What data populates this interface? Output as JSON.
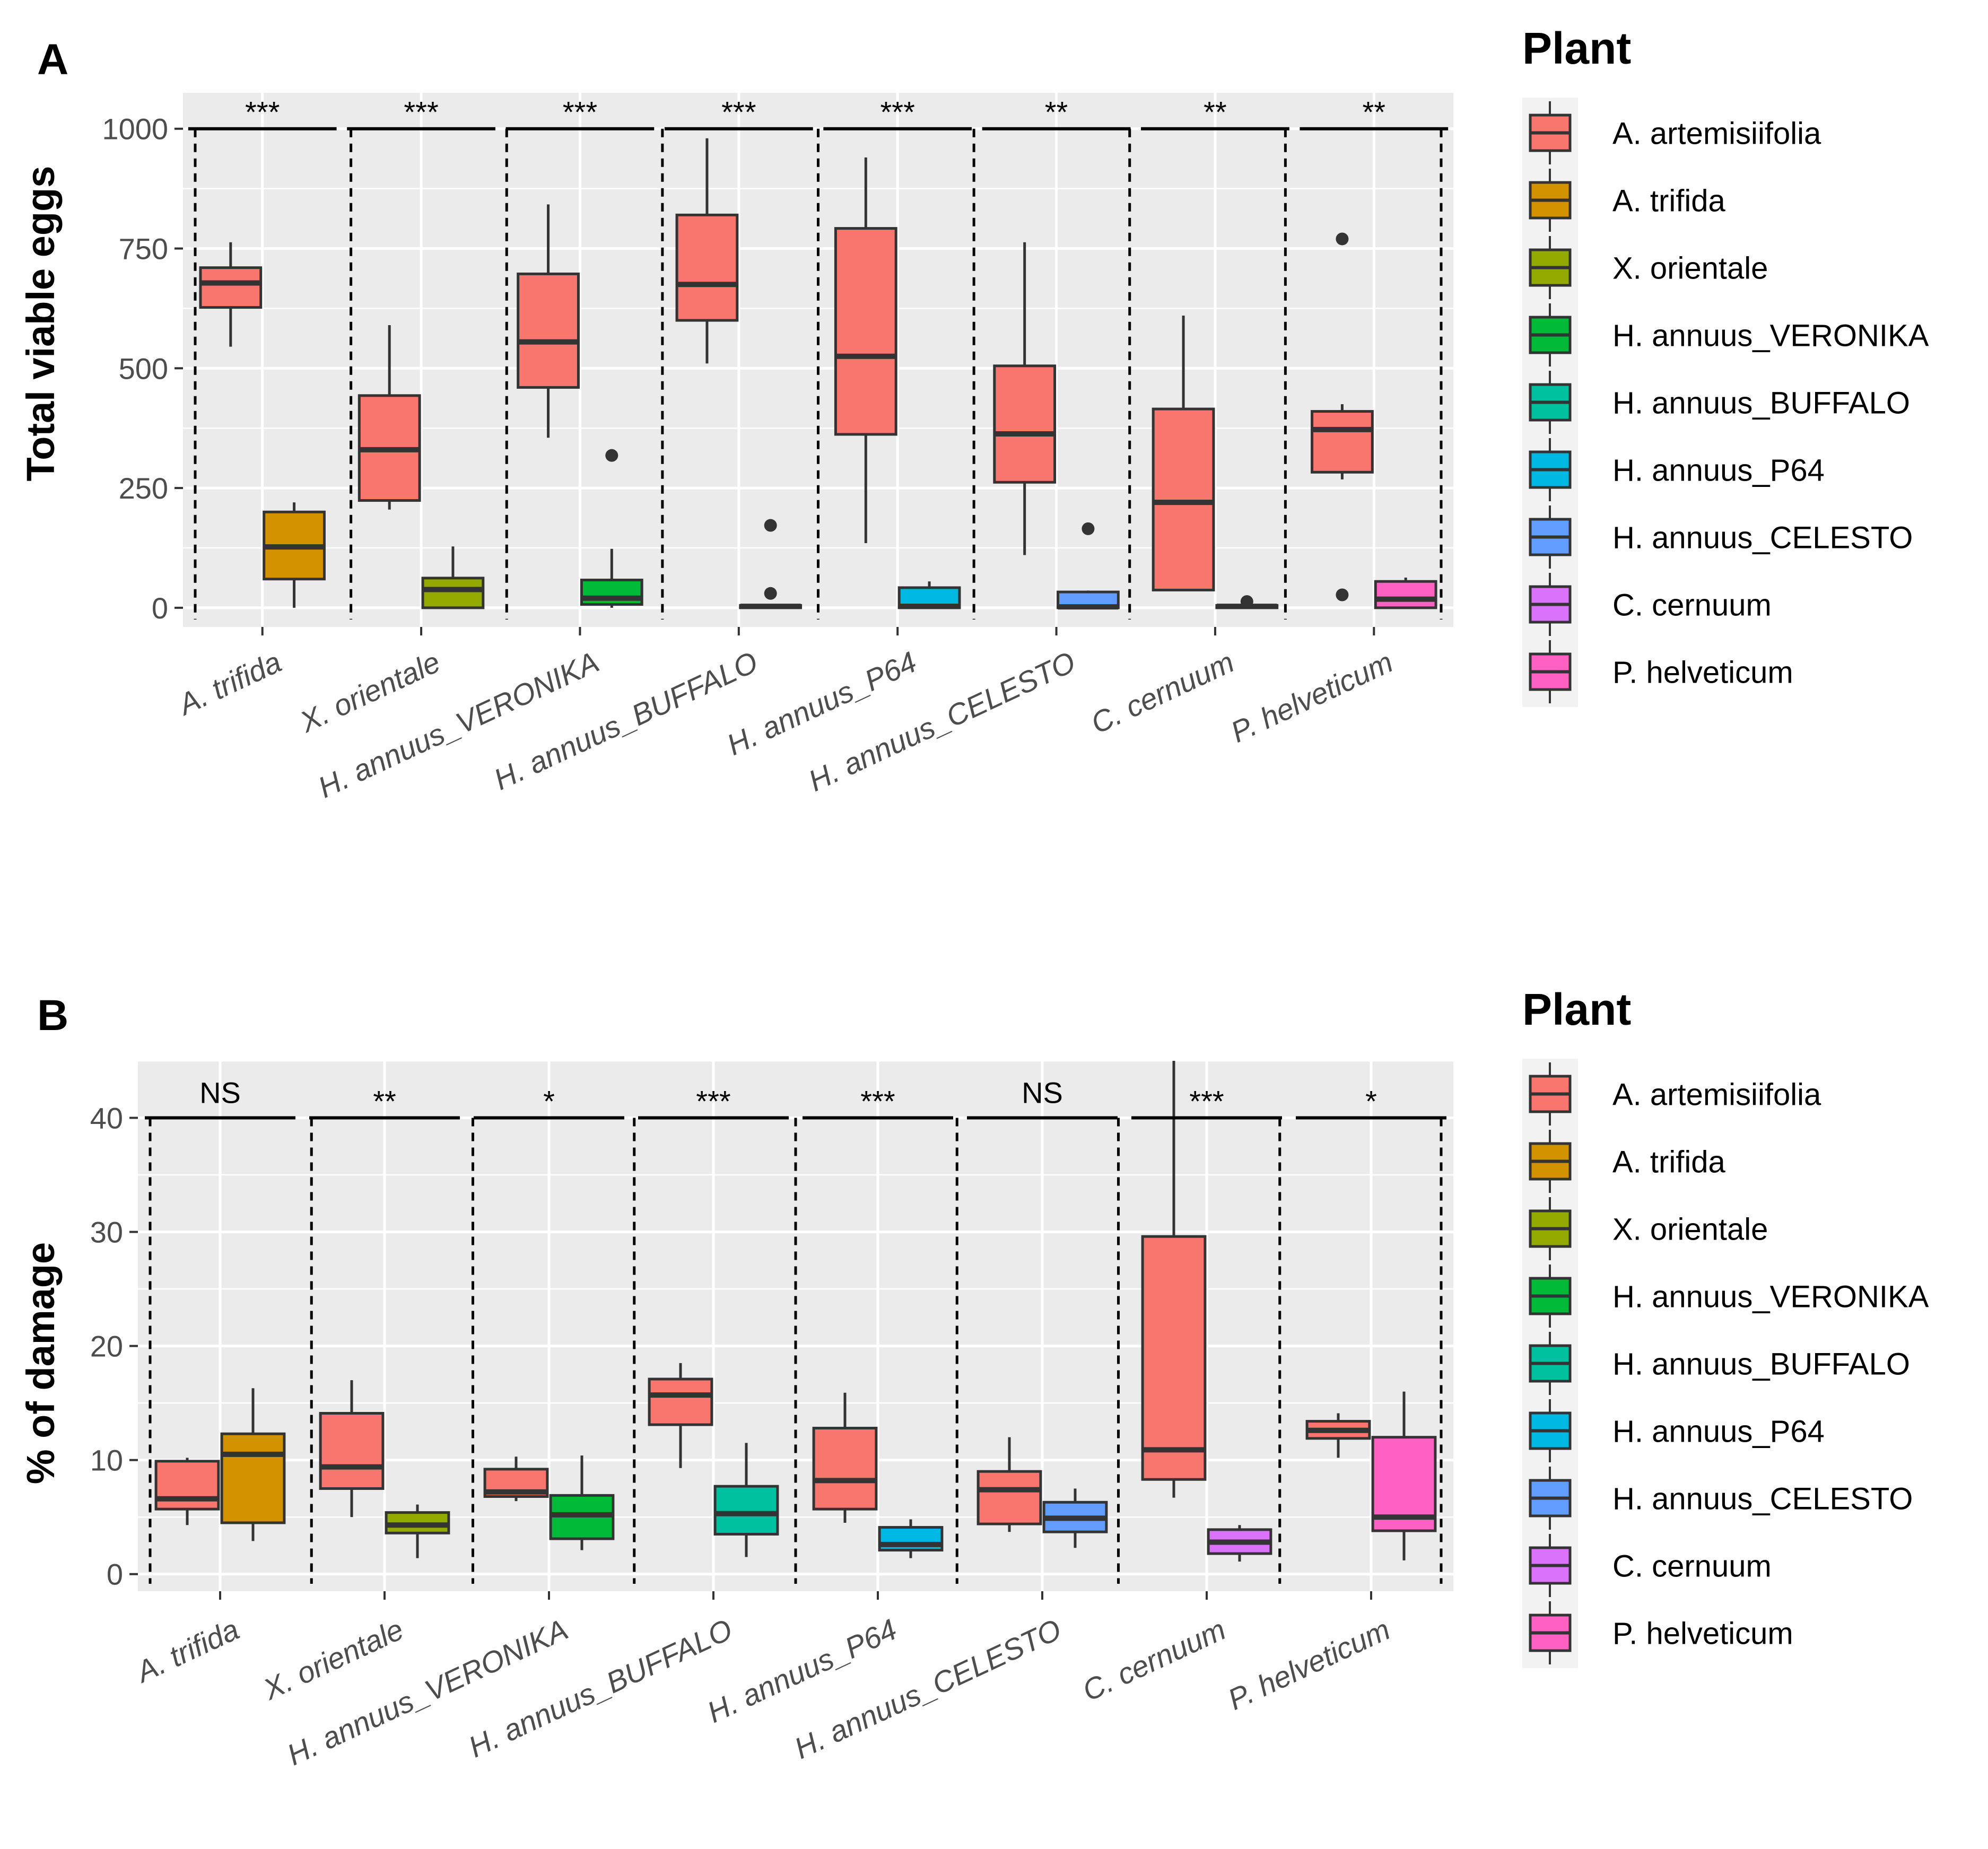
{
  "legend": {
    "title": "Plant",
    "items": [
      {
        "label": "A. artemisiifolia",
        "color": "#F8766D"
      },
      {
        "label": "A. trifida",
        "color": "#D39200"
      },
      {
        "label": "X. orientale",
        "color": "#93AA00"
      },
      {
        "label": "H. annuus_VERONIKA",
        "color": "#00BA38"
      },
      {
        "label": "H. annuus_BUFFALO",
        "color": "#00C19F"
      },
      {
        "label": "H. annuus_P64",
        "color": "#00B9E3"
      },
      {
        "label": "H. annuus_CELESTO",
        "color": "#619CFF"
      },
      {
        "label": "C. cernuum",
        "color": "#DB72FB"
      },
      {
        "label": "P. helveticum",
        "color": "#FF61C3"
      }
    ]
  },
  "chart_data": [
    {
      "type": "boxplot",
      "panel_label": "A",
      "ylabel": "Total viable eggs",
      "xlabel": "",
      "ylim": [
        -40,
        1075
      ],
      "yticks": [
        0,
        250,
        500,
        750,
        1000
      ],
      "ytick_labels": [
        "0",
        "250",
        "500",
        "750",
        "1000"
      ],
      "sig_level": 1000,
      "categories": [
        "A. trifida",
        "X. orientale",
        "H. annuus_VERONIKA",
        "H. annuus_BUFFALO",
        "H. annuus_P64",
        "H. annuus_CELESTO",
        "C. cernuum",
        "P. helveticum"
      ],
      "significance": [
        "***",
        "***",
        "***",
        "***",
        "***",
        "**",
        "**",
        "**"
      ],
      "reference": [
        {
          "min": 545,
          "q1": 627,
          "median": 678,
          "q3": 710,
          "max": 763,
          "outliers": []
        },
        {
          "min": 205,
          "q1": 224,
          "median": 330,
          "q3": 443,
          "max": 590,
          "outliers": []
        },
        {
          "min": 355,
          "q1": 460,
          "median": 555,
          "q3": 697,
          "max": 842,
          "outliers": []
        },
        {
          "min": 510,
          "q1": 600,
          "median": 675,
          "q3": 820,
          "max": 980,
          "outliers": []
        },
        {
          "min": 135,
          "q1": 362,
          "median": 525,
          "q3": 792,
          "max": 940,
          "outliers": []
        },
        {
          "min": 110,
          "q1": 262,
          "median": 363,
          "q3": 505,
          "max": 763,
          "outliers": []
        },
        {
          "min": 37,
          "q1": 37,
          "median": 220,
          "q3": 415,
          "max": 610,
          "outliers": []
        },
        {
          "min": 268,
          "q1": 283,
          "median": 372,
          "q3": 410,
          "max": 425,
          "outliers": [
            770,
            27
          ]
        }
      ],
      "treatment": [
        {
          "min": 0,
          "q1": 60,
          "median": 127,
          "q3": 200,
          "max": 220,
          "outliers": []
        },
        {
          "min": 0,
          "q1": 0,
          "median": 38,
          "q3": 62,
          "max": 128,
          "outliers": []
        },
        {
          "min": 0,
          "q1": 7,
          "median": 20,
          "q3": 58,
          "max": 123,
          "outliers": [
            318
          ]
        },
        {
          "min": 0,
          "q1": 0,
          "median": 3,
          "q3": 5,
          "max": 7,
          "outliers": [
            172,
            30
          ]
        },
        {
          "min": 0,
          "q1": 0,
          "median": 3,
          "q3": 42,
          "max": 55,
          "outliers": []
        },
        {
          "min": 0,
          "q1": 0,
          "median": 2,
          "q3": 33,
          "max": 36,
          "outliers": [
            165
          ]
        },
        {
          "min": 0,
          "q1": 0,
          "median": 3,
          "q3": 5,
          "max": 7,
          "outliers": [
            13
          ]
        },
        {
          "min": 0,
          "q1": 0,
          "median": 18,
          "q3": 55,
          "max": 63,
          "outliers": []
        }
      ]
    },
    {
      "type": "boxplot",
      "panel_label": "B",
      "ylabel": "% of damage",
      "xlabel": "",
      "ylim": [
        -1.5,
        45
      ],
      "yticks": [
        0,
        10,
        20,
        30,
        40
      ],
      "ytick_labels": [
        "0",
        "10",
        "20",
        "30",
        "40"
      ],
      "sig_level": 40,
      "categories": [
        "A. trifida",
        "X. orientale",
        "H. annuus_VERONIKA",
        "H. annuus_BUFFALO",
        "H. annuus_P64",
        "H. annuus_CELESTO",
        "C. cernuum",
        "P. helveticum"
      ],
      "significance": [
        "NS",
        "**",
        "*",
        "***",
        "***",
        "NS",
        "***",
        "*"
      ],
      "reference": [
        {
          "min": 4.3,
          "q1": 5.7,
          "median": 6.6,
          "q3": 9.9,
          "max": 10.2,
          "outliers": []
        },
        {
          "min": 5.0,
          "q1": 7.5,
          "median": 9.4,
          "q3": 14.1,
          "max": 17.0,
          "outliers": []
        },
        {
          "min": 6.4,
          "q1": 6.8,
          "median": 7.2,
          "q3": 9.2,
          "max": 10.3,
          "outliers": []
        },
        {
          "min": 9.3,
          "q1": 13.1,
          "median": 15.7,
          "q3": 17.1,
          "max": 18.5,
          "outliers": []
        },
        {
          "min": 4.5,
          "q1": 5.7,
          "median": 8.2,
          "q3": 12.8,
          "max": 15.9,
          "outliers": []
        },
        {
          "min": 3.7,
          "q1": 4.4,
          "median": 7.4,
          "q3": 9.0,
          "max": 12.0,
          "outliers": []
        },
        {
          "min": 6.7,
          "q1": 8.3,
          "median": 10.9,
          "q3": 29.6,
          "max": 45.0,
          "outliers": []
        },
        {
          "min": 10.2,
          "q1": 11.9,
          "median": 12.6,
          "q3": 13.4,
          "max": 14.1,
          "outliers": []
        }
      ],
      "treatment": [
        {
          "min": 2.9,
          "q1": 4.5,
          "median": 10.5,
          "q3": 12.3,
          "max": 16.3,
          "outliers": []
        },
        {
          "min": 1.4,
          "q1": 3.6,
          "median": 4.3,
          "q3": 5.4,
          "max": 6.1,
          "outliers": []
        },
        {
          "min": 2.1,
          "q1": 3.1,
          "median": 5.2,
          "q3": 6.9,
          "max": 10.4,
          "outliers": []
        },
        {
          "min": 1.5,
          "q1": 3.5,
          "median": 5.3,
          "q3": 7.7,
          "max": 11.5,
          "outliers": []
        },
        {
          "min": 1.4,
          "q1": 2.1,
          "median": 2.6,
          "q3": 4.1,
          "max": 4.8,
          "outliers": []
        },
        {
          "min": 2.3,
          "q1": 3.7,
          "median": 4.9,
          "q3": 6.3,
          "max": 7.5,
          "outliers": []
        },
        {
          "min": 1.1,
          "q1": 1.8,
          "median": 2.8,
          "q3": 3.9,
          "max": 4.3,
          "outliers": []
        },
        {
          "min": 1.2,
          "q1": 3.8,
          "median": 5.0,
          "q3": 12.0,
          "max": 16.0,
          "outliers": []
        }
      ]
    }
  ]
}
